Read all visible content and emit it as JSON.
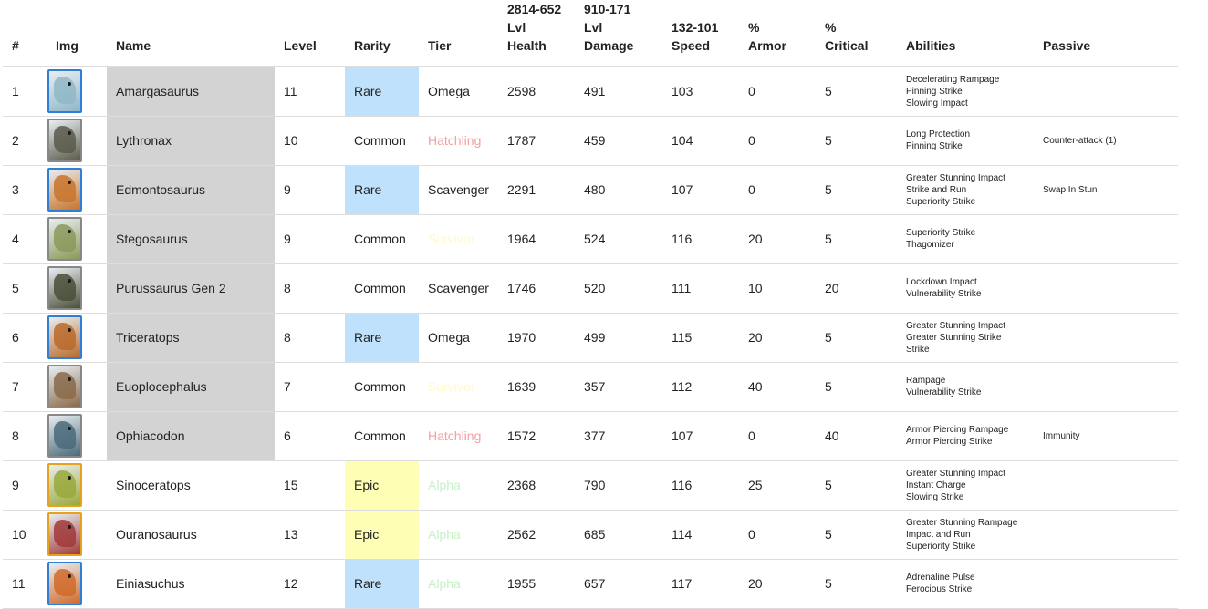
{
  "headers": [
    {
      "lines": [
        "#"
      ]
    },
    {
      "lines": [
        "Img"
      ]
    },
    {
      "lines": [
        "Name"
      ]
    },
    {
      "lines": [
        "Level"
      ]
    },
    {
      "lines": [
        "Rarity"
      ]
    },
    {
      "lines": [
        "Tier"
      ]
    },
    {
      "lines": [
        "2814-652",
        "Lvl",
        "Health"
      ]
    },
    {
      "lines": [
        "910-171",
        "Lvl",
        "Damage"
      ]
    },
    {
      "lines": [
        "132-101",
        "Speed"
      ]
    },
    {
      "lines": [
        "%",
        "Armor"
      ]
    },
    {
      "lines": [
        "%",
        "Critical"
      ]
    },
    {
      "lines": [
        "Abilities"
      ]
    },
    {
      "lines": [
        "Passive"
      ]
    }
  ],
  "tier_colors": {
    "Omega": "#222222",
    "Scavenger": "#222222",
    "Hatchling": "#f4a0a0",
    "Survivor": "#fffacd",
    "Alpha": "#c5f2c5"
  },
  "rows": [
    {
      "num": "1",
      "name": "Amargasaurus",
      "level": "11",
      "rarity": "Rare",
      "tier": "Omega",
      "health": "2598",
      "damage": "491",
      "speed": "103",
      "armor": "0",
      "critical": "5",
      "abilities": [
        "Decelerating Rampage",
        "Pinning Strike",
        "Slowing Impact"
      ],
      "passive": "",
      "name_bg": "gray",
      "thumb": "#8fb7c8",
      "border": "#2f7fd6"
    },
    {
      "num": "2",
      "name": "Lythronax",
      "level": "10",
      "rarity": "Common",
      "tier": "Hatchling",
      "health": "1787",
      "damage": "459",
      "speed": "104",
      "armor": "0",
      "critical": "5",
      "abilities": [
        "Long Protection",
        "Pinning Strike"
      ],
      "passive": "Counter-attack (1)",
      "name_bg": "gray",
      "thumb": "#5a5a4a",
      "border": "#888888"
    },
    {
      "num": "3",
      "name": "Edmontosaurus",
      "level": "9",
      "rarity": "Rare",
      "tier": "Scavenger",
      "health": "2291",
      "damage": "480",
      "speed": "107",
      "armor": "0",
      "critical": "5",
      "abilities": [
        "Greater Stunning Impact",
        "Strike and Run",
        "Superiority Strike"
      ],
      "passive": "Swap In Stun",
      "name_bg": "gray",
      "thumb": "#c8742c",
      "border": "#2f7fd6"
    },
    {
      "num": "4",
      "name": "Stegosaurus",
      "level": "9",
      "rarity": "Common",
      "tier": "Survivor",
      "health": "1964",
      "damage": "524",
      "speed": "116",
      "armor": "20",
      "critical": "5",
      "abilities": [
        "Superiority Strike",
        "Thagomizer"
      ],
      "passive": "",
      "name_bg": "gray",
      "thumb": "#8a9a5a",
      "border": "#888888"
    },
    {
      "num": "5",
      "name": "Purussaurus Gen 2",
      "level": "8",
      "rarity": "Common",
      "tier": "Scavenger",
      "health": "1746",
      "damage": "520",
      "speed": "111",
      "armor": "10",
      "critical": "20",
      "abilities": [
        "Lockdown Impact",
        "Vulnerability Strike"
      ],
      "passive": "",
      "name_bg": "gray",
      "thumb": "#4a4f3a",
      "border": "#888888"
    },
    {
      "num": "6",
      "name": "Triceratops",
      "level": "8",
      "rarity": "Rare",
      "tier": "Omega",
      "health": "1970",
      "damage": "499",
      "speed": "115",
      "armor": "20",
      "critical": "5",
      "abilities": [
        "Greater Stunning Impact",
        "Greater Stunning Strike",
        "Strike"
      ],
      "passive": "",
      "name_bg": "gray",
      "thumb": "#b86a2a",
      "border": "#2f7fd6"
    },
    {
      "num": "7",
      "name": "Euoplocephalus",
      "level": "7",
      "rarity": "Common",
      "tier": "Survivor",
      "health": "1639",
      "damage": "357",
      "speed": "112",
      "armor": "40",
      "critical": "5",
      "abilities": [
        "Rampage",
        "Vulnerability Strike"
      ],
      "passive": "",
      "name_bg": "gray",
      "thumb": "#8a6a4a",
      "border": "#888888"
    },
    {
      "num": "8",
      "name": "Ophiacodon",
      "level": "6",
      "rarity": "Common",
      "tier": "Hatchling",
      "health": "1572",
      "damage": "377",
      "speed": "107",
      "armor": "0",
      "critical": "40",
      "abilities": [
        "Armor Piercing Rampage",
        "Armor Piercing Strike"
      ],
      "passive": "Immunity",
      "name_bg": "gray",
      "thumb": "#4a6a7a",
      "border": "#888888"
    },
    {
      "num": "9",
      "name": "Sinoceratops",
      "level": "15",
      "rarity": "Epic",
      "tier": "Alpha",
      "health": "2368",
      "damage": "790",
      "speed": "116",
      "armor": "25",
      "critical": "5",
      "abilities": [
        "Greater Stunning Impact",
        "Instant Charge",
        "Slowing Strike"
      ],
      "passive": "",
      "name_bg": "none",
      "thumb": "#9aa83a",
      "border": "#e8a21a"
    },
    {
      "num": "10",
      "name": "Ouranosaurus",
      "level": "13",
      "rarity": "Epic",
      "tier": "Alpha",
      "health": "2562",
      "damage": "685",
      "speed": "114",
      "armor": "0",
      "critical": "5",
      "abilities": [
        "Greater Stunning Rampage",
        "Impact and Run",
        "Superiority Strike"
      ],
      "passive": "",
      "name_bg": "none",
      "thumb": "#a03a3a",
      "border": "#e8a21a"
    },
    {
      "num": "11",
      "name": "Einiasuchus",
      "level": "12",
      "rarity": "Rare",
      "tier": "Alpha",
      "health": "1955",
      "damage": "657",
      "speed": "117",
      "armor": "20",
      "critical": "5",
      "abilities": [
        "Adrenaline Pulse",
        "Ferocious Strike"
      ],
      "passive": "",
      "name_bg": "none",
      "thumb": "#d06a2a",
      "border": "#2f7fd6"
    }
  ]
}
